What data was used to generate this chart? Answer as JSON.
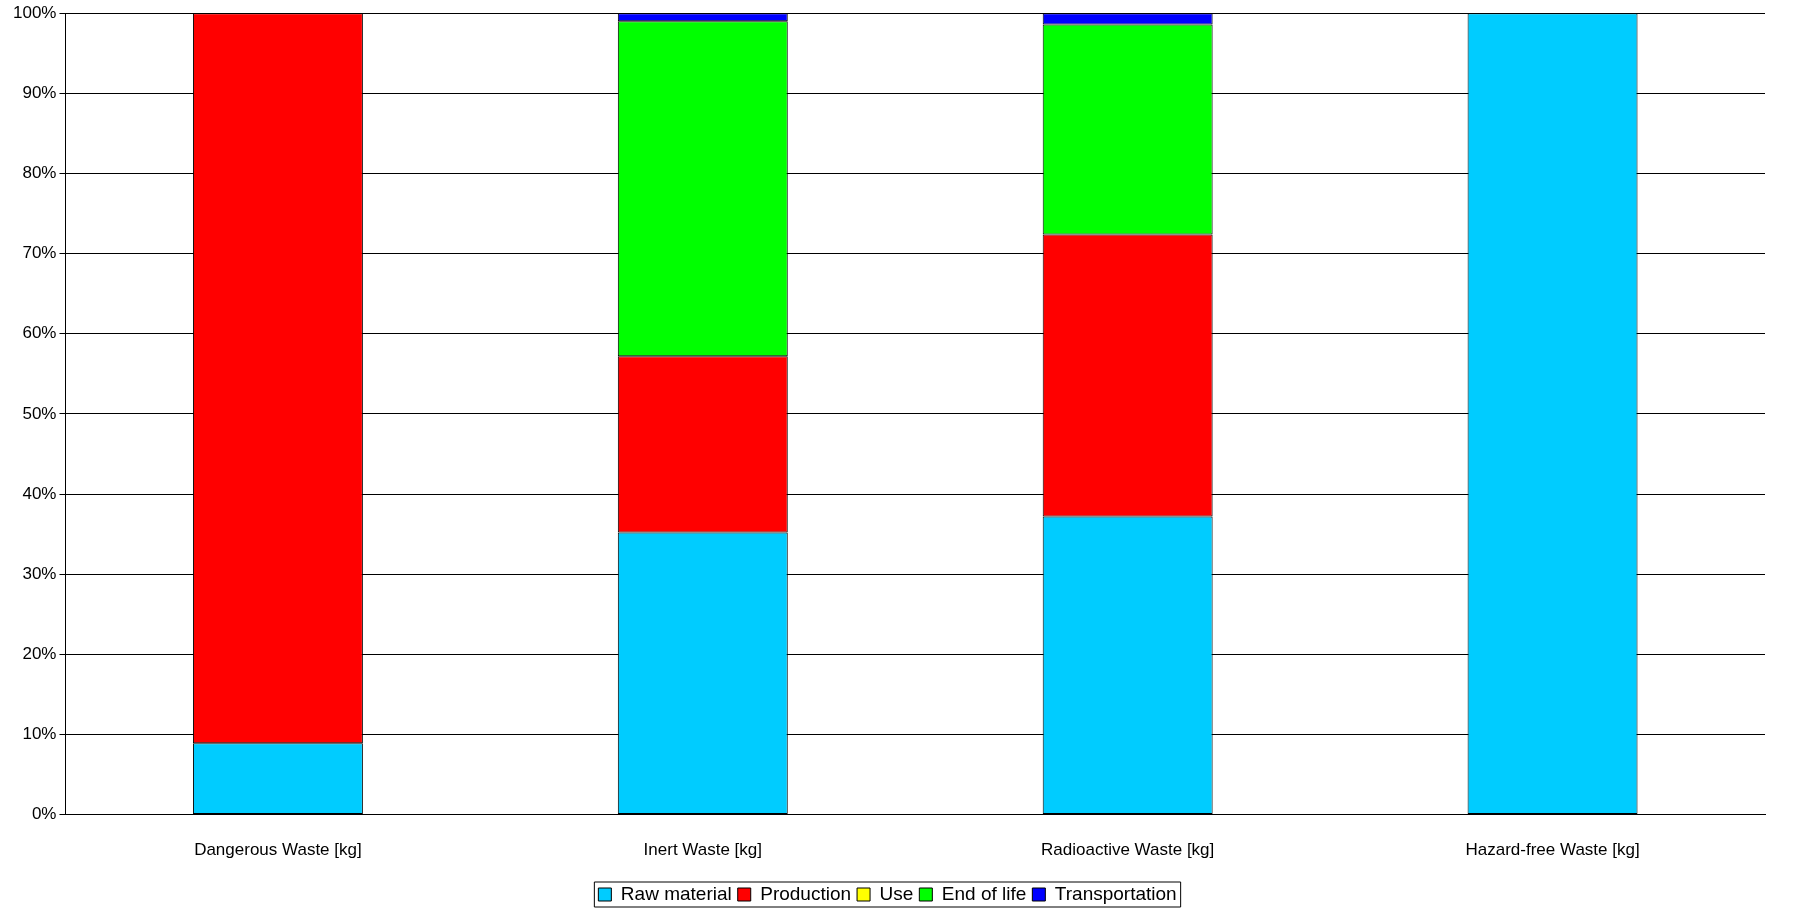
{
  "chart_data": {
    "type": "bar",
    "stacked": true,
    "categories": [
      "Dangerous Waste [kg]",
      "Inert Waste [kg]",
      "Radioactive Waste [kg]",
      "Hazard-free Waste [kg]"
    ],
    "series": [
      {
        "name": "Raw material",
        "color": "#00ccff",
        "values": [
          8.9,
          35.2,
          37.2,
          100
        ]
      },
      {
        "name": "Production",
        "color": "#ff0000",
        "values": [
          91.1,
          22.0,
          35.2,
          0
        ]
      },
      {
        "name": "Use",
        "color": "#ffff00",
        "values": [
          0,
          0,
          0,
          0
        ]
      },
      {
        "name": "End of life",
        "color": "#00ff00",
        "values": [
          0,
          41.8,
          26.2,
          0
        ]
      },
      {
        "name": "Transportation",
        "color": "#0000ff",
        "values": [
          0,
          1.0,
          1.4,
          0
        ]
      }
    ],
    "ylim": [
      0,
      100
    ],
    "yticks": [
      {
        "value": 0,
        "label": "0%"
      },
      {
        "value": 10,
        "label": "10%"
      },
      {
        "value": 20,
        "label": "20%"
      },
      {
        "value": 30,
        "label": "30%"
      },
      {
        "value": 40,
        "label": "40%"
      },
      {
        "value": 50,
        "label": "50%"
      },
      {
        "value": 60,
        "label": "60%"
      },
      {
        "value": 70,
        "label": "70%"
      },
      {
        "value": 80,
        "label": "80%"
      },
      {
        "value": 90,
        "label": "90%"
      },
      {
        "value": 100,
        "label": "100%"
      }
    ],
    "grid": "y",
    "legend": "bottom"
  }
}
